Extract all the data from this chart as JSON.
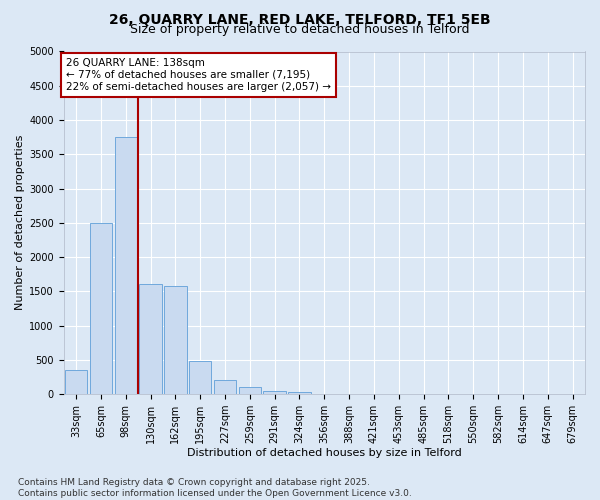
{
  "title_line1": "26, QUARRY LANE, RED LAKE, TELFORD, TF1 5EB",
  "title_line2": "Size of property relative to detached houses in Telford",
  "xlabel": "Distribution of detached houses by size in Telford",
  "ylabel": "Number of detached properties",
  "categories": [
    "33sqm",
    "65sqm",
    "98sqm",
    "130sqm",
    "162sqm",
    "195sqm",
    "227sqm",
    "259sqm",
    "291sqm",
    "324sqm",
    "356sqm",
    "388sqm",
    "421sqm",
    "453sqm",
    "485sqm",
    "518sqm",
    "550sqm",
    "582sqm",
    "614sqm",
    "647sqm",
    "679sqm"
  ],
  "values": [
    350,
    2500,
    3750,
    1600,
    1580,
    490,
    200,
    110,
    50,
    30,
    0,
    0,
    0,
    0,
    0,
    0,
    0,
    0,
    0,
    0,
    0
  ],
  "bar_color": "#c9daf0",
  "bar_edge_color": "#6fa8dc",
  "annotation_text": "26 QUARRY LANE: 138sqm\n← 77% of detached houses are smaller (7,195)\n22% of semi-detached houses are larger (2,057) →",
  "annotation_box_color": "#ffffff",
  "annotation_box_edge_color": "#aa0000",
  "vline_color": "#aa0000",
  "vline_x": 3.0,
  "ylim": [
    0,
    5000
  ],
  "yticks": [
    0,
    500,
    1000,
    1500,
    2000,
    2500,
    3000,
    3500,
    4000,
    4500,
    5000
  ],
  "background_color": "#dce8f5",
  "plot_bg_color": "#dce8f5",
  "grid_color": "#ffffff",
  "footer_text": "Contains HM Land Registry data © Crown copyright and database right 2025.\nContains public sector information licensed under the Open Government Licence v3.0.",
  "title_fontsize": 10,
  "subtitle_fontsize": 9,
  "axis_label_fontsize": 8,
  "tick_fontsize": 7,
  "annot_fontsize": 7.5,
  "footer_fontsize": 6.5
}
